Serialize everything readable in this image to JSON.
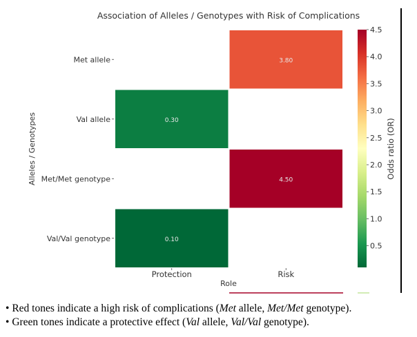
{
  "chart_data": {
    "type": "heatmap",
    "title": "Association of Alleles / Genotypes with Risk of Complications",
    "xlabel": "Role",
    "ylabel": "Alleles / Genotypes",
    "x_categories": [
      "Protection",
      "Risk"
    ],
    "y_categories": [
      "Met allele",
      "Val allele",
      "Met/Met genotype",
      "Val/Val genotype"
    ],
    "cells": [
      {
        "row": "Met allele",
        "col": "Risk",
        "value": 3.8,
        "label": "3.80"
      },
      {
        "row": "Val allele",
        "col": "Protection",
        "value": 0.3,
        "label": "0.30"
      },
      {
        "row": "Met/Met genotype",
        "col": "Risk",
        "value": 4.5,
        "label": "4.50"
      },
      {
        "row": "Val/Val genotype",
        "col": "Protection",
        "value": 0.1,
        "label": "0.10"
      }
    ],
    "colorbar": {
      "label": "Odds ratio (OR)",
      "colormap": "RdYlGn_r",
      "vmin": 0.1,
      "vmax": 4.5,
      "ticks": [
        "0.5",
        "1.0",
        "1.5",
        "2.0",
        "2.5",
        "3.0",
        "3.5",
        "4.0",
        "4.5"
      ],
      "tick_values": [
        0.5,
        1.0,
        1.5,
        2.0,
        2.5,
        3.0,
        3.5,
        4.0,
        4.5
      ]
    },
    "grid": false,
    "legend": "colorbar-right"
  },
  "notes": {
    "bullet": "•",
    "line1": {
      "pre": " Red tones indicate a high risk of complications (",
      "em1": "Met",
      "mid": " allele, ",
      "em2": "Met/Met",
      "post": " genotype)."
    },
    "line2": {
      "pre": " Green tones indicate a protective effect (",
      "em1": "Val",
      "mid": " allele, ",
      "em2": "Val/Val",
      "post": " genotype)."
    }
  }
}
